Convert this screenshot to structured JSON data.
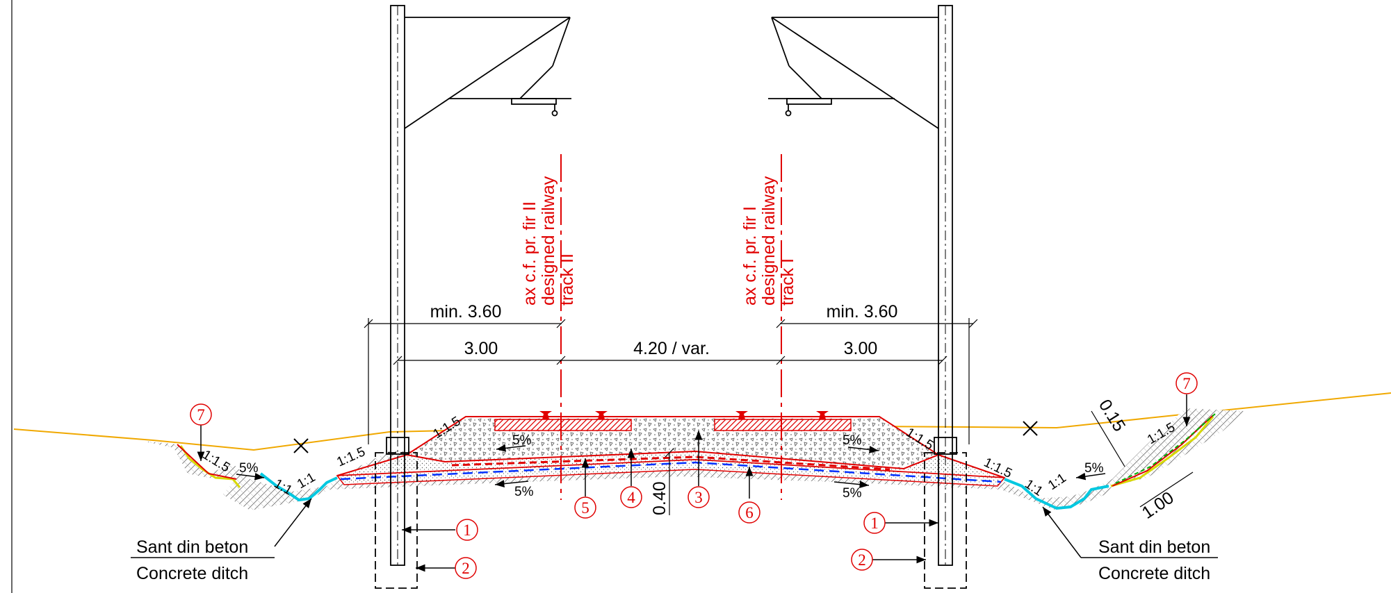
{
  "dimensions": {
    "top_left": "min. 3.60",
    "top_right": "min. 3.60",
    "left": "3.00",
    "center": "4.20 / var.",
    "right": "3.00",
    "depth": "0.40",
    "right_thickness": "0.15",
    "right_width": "1.00"
  },
  "axes": {
    "track2": {
      "line1": "ax c.f. pr. fir II",
      "line2": "designed railway",
      "line3": "track II"
    },
    "track1": {
      "line1": "ax c.f. pr. fir I",
      "line2": "designed railway",
      "line3": "track I"
    }
  },
  "slopes": {
    "s_1_1_5": "1:1.5",
    "s_1_1": "1:1",
    "s_5pct": "5%"
  },
  "ditch": {
    "ro": "Sant din beton",
    "en": "Concrete ditch"
  },
  "callouts": [
    "1",
    "2",
    "3",
    "4",
    "5",
    "6",
    "7"
  ],
  "colors": {
    "red": "#e00000",
    "ground_line": "#f0a800",
    "ditch": "#00c8e0",
    "membrane_blue": "#0030ff",
    "green": "#00b000",
    "yellow": "#d8d800"
  }
}
